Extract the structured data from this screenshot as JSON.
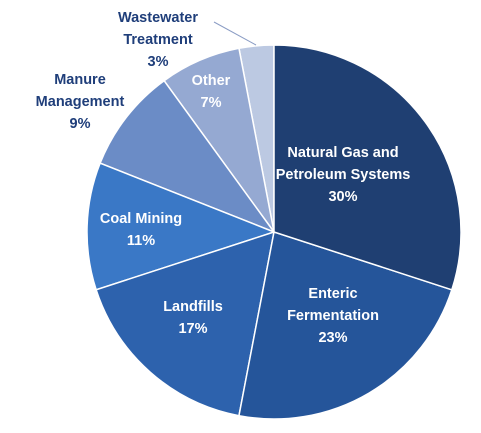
{
  "chart_data": {
    "type": "pie",
    "categories": [
      "Natural Gas and Petroleum Systems",
      "Enteric Fermentation",
      "Landfills",
      "Coal Mining",
      "Manure Management",
      "Other",
      "Wastewater Treatment"
    ],
    "values": [
      30,
      23,
      17,
      11,
      9,
      7,
      3
    ],
    "value_labels": [
      "30%",
      "23%",
      "17%",
      "11%",
      "9%",
      "7%",
      "3%"
    ],
    "colors": [
      "#1f3f72",
      "#25559a",
      "#2d62ad",
      "#3a78c6",
      "#6b8cc6",
      "#95a9d2",
      "#bcc9e2"
    ]
  }
}
